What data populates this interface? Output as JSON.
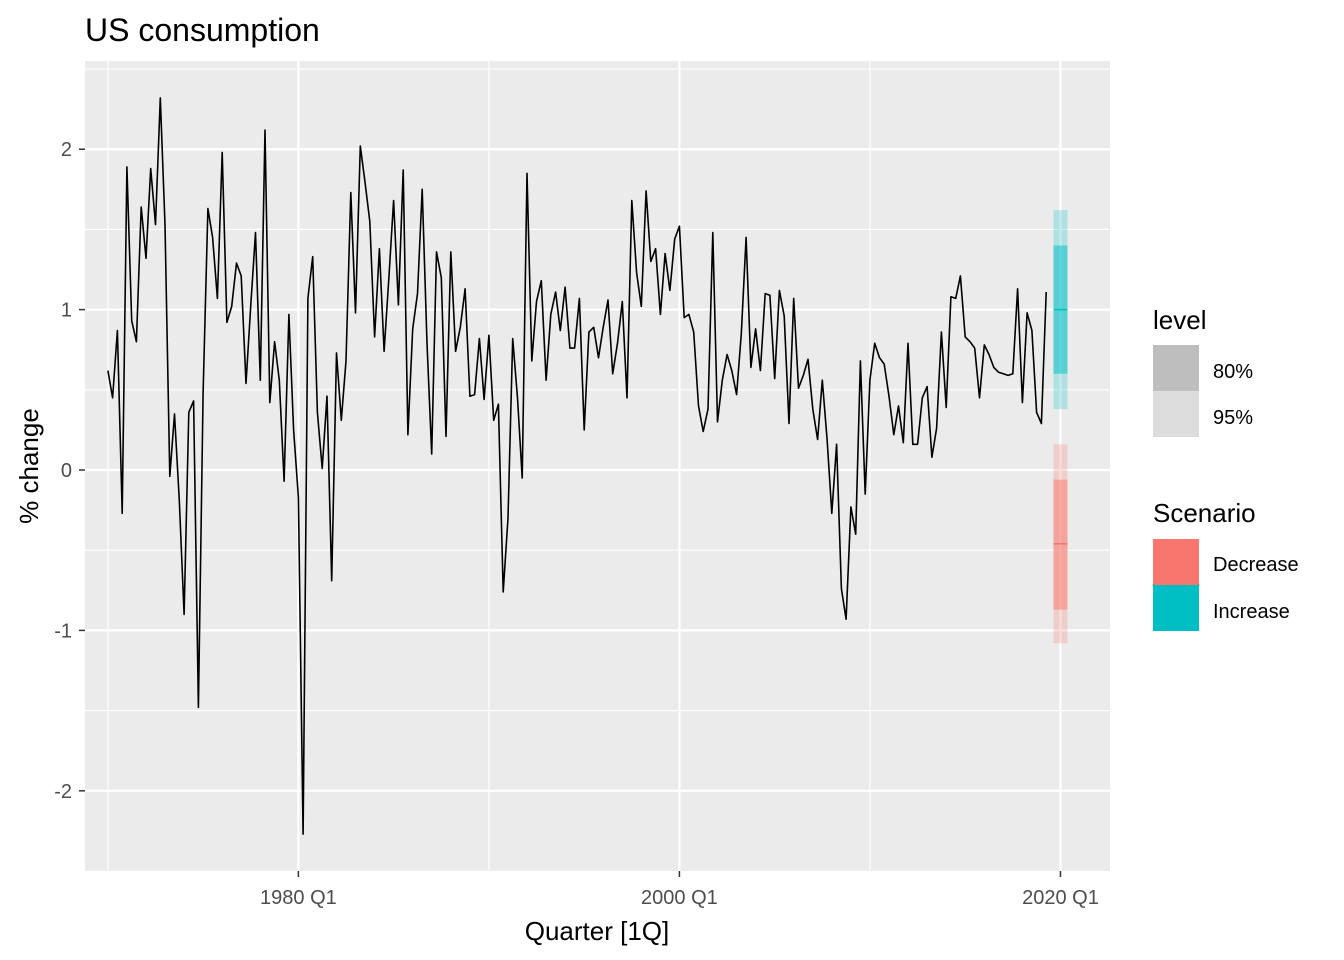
{
  "chart_data": {
    "type": "line",
    "title": "US consumption",
    "xlabel": "Quarter [1Q]",
    "ylabel": "% change",
    "x_ticks": [
      "1980 Q1",
      "2000 Q1",
      "2020 Q1"
    ],
    "y_ticks": [
      "-2",
      "-1",
      "0",
      "1",
      "2"
    ],
    "xlim": [
      1968.8,
      2022.6
    ],
    "ylim": [
      -2.5,
      2.55
    ],
    "grid": true,
    "history": {
      "start": "1970 Q1",
      "values": [
        0.62,
        0.45,
        0.87,
        -0.27,
        1.89,
        0.93,
        0.8,
        1.64,
        1.32,
        1.88,
        1.53,
        2.32,
        1.53,
        -0.04,
        0.35,
        -0.19,
        -0.9,
        0.36,
        0.43,
        -1.48,
        0.48,
        1.63,
        1.45,
        1.07,
        1.98,
        0.92,
        1.02,
        1.29,
        1.21,
        0.54,
        1.03,
        1.48,
        0.56,
        2.12,
        0.42,
        0.8,
        0.56,
        -0.07,
        0.97,
        0.25,
        -0.17,
        -2.27,
        1.07,
        1.33,
        0.36,
        0.01,
        0.46,
        -0.69,
        0.73,
        0.31,
        0.68,
        1.73,
        0.98,
        2.02,
        1.79,
        1.55,
        0.83,
        1.38,
        0.74,
        1.2,
        1.68,
        1.03,
        1.87,
        0.22,
        0.88,
        1.1,
        1.75,
        0.79,
        0.1,
        1.36,
        1.2,
        0.21,
        1.36,
        0.74,
        0.89,
        1.13,
        0.46,
        0.47,
        0.82,
        0.44,
        0.84,
        0.31,
        0.41,
        -0.76,
        -0.3,
        0.82,
        0.45,
        -0.05,
        1.85,
        0.68,
        1.05,
        1.18,
        0.56,
        0.97,
        1.11,
        0.87,
        1.14,
        0.76,
        0.76,
        1.07,
        0.25,
        0.86,
        0.89,
        0.7,
        0.89,
        1.06,
        0.6,
        0.79,
        1.05,
        0.45,
        1.68,
        1.23,
        1.02,
        1.74,
        1.3,
        1.38,
        0.97,
        1.35,
        1.12,
        1.44,
        1.52,
        0.95,
        0.97,
        0.86,
        0.4,
        0.24,
        0.38,
        1.48,
        0.3,
        0.56,
        0.72,
        0.62,
        0.47,
        0.85,
        1.45,
        0.64,
        0.88,
        0.62,
        1.1,
        1.09,
        0.57,
        1.12,
        0.96,
        0.29,
        1.07,
        0.51,
        0.59,
        0.69,
        0.38,
        0.19,
        0.56,
        0.19,
        -0.27,
        0.16,
        -0.74,
        -0.93,
        -0.23,
        -0.4,
        0.68,
        -0.15,
        0.56,
        0.79,
        0.7,
        0.66,
        0.46,
        0.22,
        0.4,
        0.17,
        0.79,
        0.16,
        0.16,
        0.45,
        0.52,
        0.08,
        0.26,
        0.86,
        0.39,
        1.08,
        1.07,
        1.21,
        0.83,
        0.8,
        0.76,
        0.45,
        0.78,
        0.72,
        0.64,
        0.61,
        0.6,
        0.59,
        0.6,
        1.13,
        0.42,
        0.98,
        0.87,
        0.36,
        0.29,
        1.11
      ]
    },
    "forecast": {
      "x": "2020 Q1",
      "scenarios": [
        {
          "name": "Decrease",
          "color": "#F8766D",
          "mean": -0.46,
          "lo80": -0.87,
          "hi80": -0.06,
          "lo95": -1.08,
          "hi95": 0.16
        },
        {
          "name": "Increase",
          "color": "#00BFC4",
          "mean": 1.0,
          "lo80": 0.6,
          "hi80": 1.4,
          "lo95": 0.38,
          "hi95": 1.62
        }
      ]
    },
    "legend_level": {
      "title": "level",
      "items": [
        {
          "label": "80%",
          "color": "#BEBEBE"
        },
        {
          "label": "95%",
          "color": "#DDDDDD"
        }
      ]
    },
    "legend_scenario": {
      "title": "Scenario",
      "items": [
        {
          "label": "Decrease",
          "color": "#F8766D"
        },
        {
          "label": "Increase",
          "color": "#00BFC4"
        }
      ]
    },
    "legend_placement": "right"
  }
}
